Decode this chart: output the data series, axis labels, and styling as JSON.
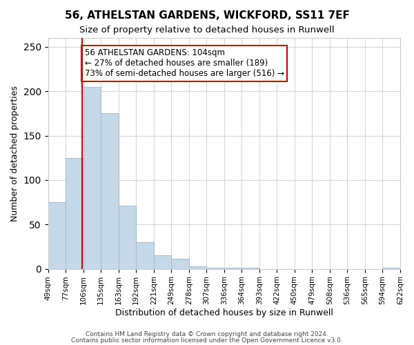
{
  "title": "56, ATHELSTAN GARDENS, WICKFORD, SS11 7EF",
  "subtitle": "Size of property relative to detached houses in Runwell",
  "xlabel": "Distribution of detached houses by size in Runwell",
  "ylabel": "Number of detached properties",
  "bin_edges": [
    49,
    77,
    106,
    135,
    163,
    192,
    221,
    249,
    278,
    307,
    336,
    364,
    393,
    422,
    450,
    479,
    508,
    536,
    565,
    594,
    622
  ],
  "bin_labels": [
    "49sqm",
    "77sqm",
    "106sqm",
    "135sqm",
    "163sqm",
    "192sqm",
    "221sqm",
    "249sqm",
    "278sqm",
    "307sqm",
    "336sqm",
    "364sqm",
    "393sqm",
    "422sqm",
    "450sqm",
    "479sqm",
    "508sqm",
    "536sqm",
    "565sqm",
    "594sqm",
    "622sqm"
  ],
  "counts": [
    75,
    125,
    205,
    175,
    71,
    30,
    15,
    11,
    3,
    1,
    1,
    1,
    0,
    0,
    0,
    0,
    0,
    0,
    0,
    1
  ],
  "bar_color": "#c5d8e8",
  "bar_edge_color": "#a0bcd0",
  "vline_x": 104,
  "vline_color": "#cc0000",
  "annotation_text": "56 ATHELSTAN GARDENS: 104sqm\n← 27% of detached houses are smaller (189)\n73% of semi-detached houses are larger (516) →",
  "annotation_box_color": "#ffffff",
  "annotation_box_edge_color": "#cc0000",
  "ylim": [
    0,
    260
  ],
  "footer_line1": "Contains HM Land Registry data © Crown copyright and database right 2024.",
  "footer_line2": "Contains public sector information licensed under the Open Government Licence v3.0.",
  "background_color": "#ffffff",
  "grid_color": "#d0d8e0"
}
